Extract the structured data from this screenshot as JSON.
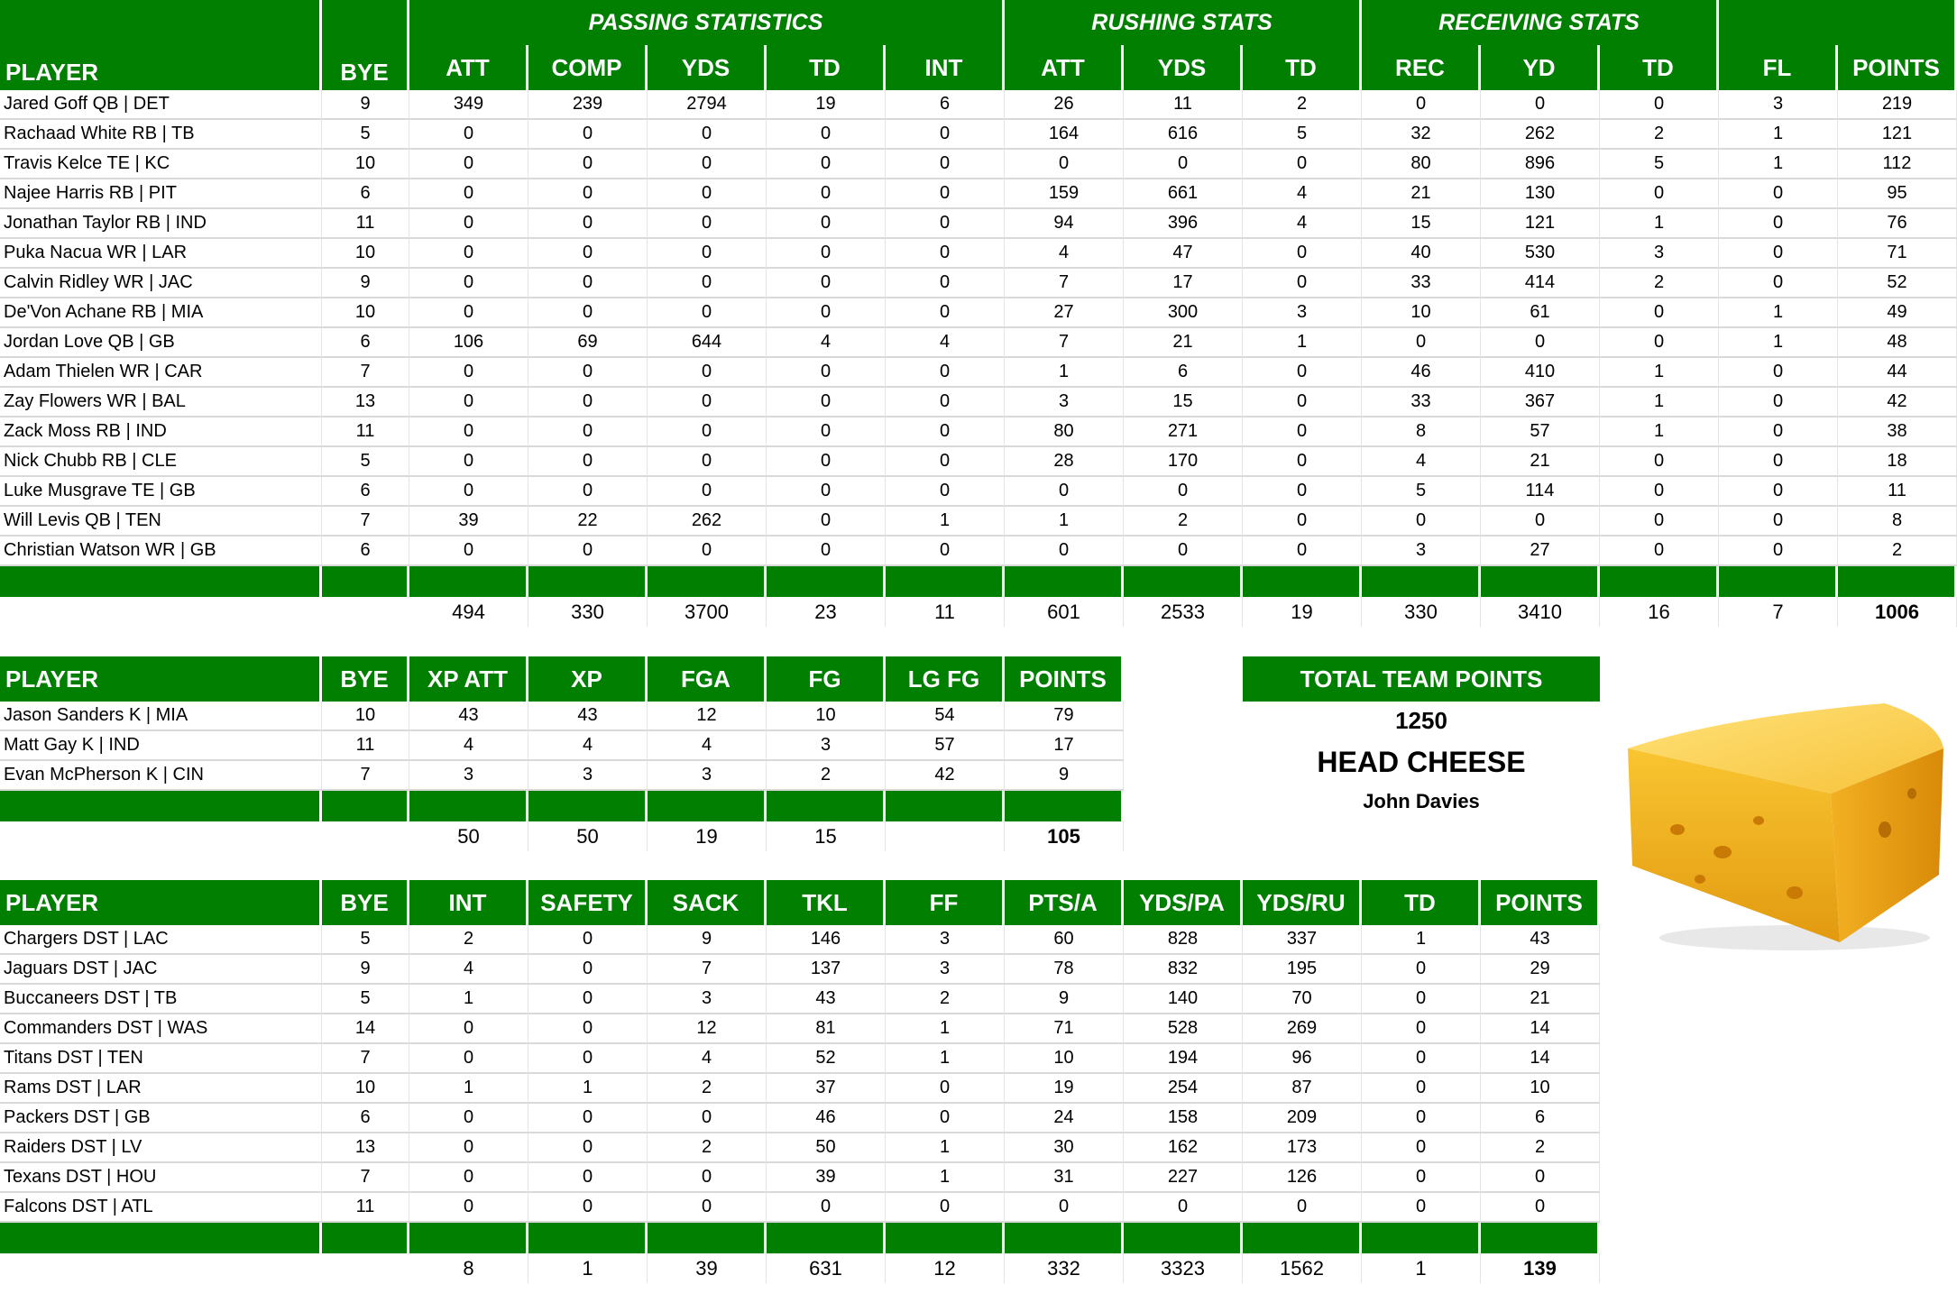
{
  "colors": {
    "header_green": "#007f00",
    "text": "#000000",
    "cheese": "#f4b400"
  },
  "offense": {
    "groups": [
      {
        "label": "",
        "span": 2
      },
      {
        "label": "PASSING STATISTICS",
        "span": 5
      },
      {
        "label": "RUSHING STATS",
        "span": 3
      },
      {
        "label": "RECEIVING STATS",
        "span": 3
      },
      {
        "label": "",
        "span": 2
      }
    ],
    "columns": [
      "PLAYER",
      "BYE",
      "ATT",
      "COMP",
      "YDS",
      "TD",
      "INT",
      "ATT",
      "YDS",
      "TD",
      "REC",
      "YD",
      "TD",
      "FL",
      "POINTS"
    ],
    "rows": [
      [
        "Jared Goff QB | DET",
        "9",
        "349",
        "239",
        "2794",
        "19",
        "6",
        "26",
        "11",
        "2",
        "0",
        "0",
        "0",
        "3",
        "219"
      ],
      [
        "Rachaad White RB | TB",
        "5",
        "0",
        "0",
        "0",
        "0",
        "0",
        "164",
        "616",
        "5",
        "32",
        "262",
        "2",
        "1",
        "121"
      ],
      [
        "Travis Kelce TE | KC",
        "10",
        "0",
        "0",
        "0",
        "0",
        "0",
        "0",
        "0",
        "0",
        "80",
        "896",
        "5",
        "1",
        "112"
      ],
      [
        "Najee Harris RB | PIT",
        "6",
        "0",
        "0",
        "0",
        "0",
        "0",
        "159",
        "661",
        "4",
        "21",
        "130",
        "0",
        "0",
        "95"
      ],
      [
        "Jonathan Taylor RB | IND",
        "11",
        "0",
        "0",
        "0",
        "0",
        "0",
        "94",
        "396",
        "4",
        "15",
        "121",
        "1",
        "0",
        "76"
      ],
      [
        "Puka Nacua WR | LAR",
        "10",
        "0",
        "0",
        "0",
        "0",
        "0",
        "4",
        "47",
        "0",
        "40",
        "530",
        "3",
        "0",
        "71"
      ],
      [
        "Calvin Ridley WR | JAC",
        "9",
        "0",
        "0",
        "0",
        "0",
        "0",
        "7",
        "17",
        "0",
        "33",
        "414",
        "2",
        "0",
        "52"
      ],
      [
        "De'Von Achane RB | MIA",
        "10",
        "0",
        "0",
        "0",
        "0",
        "0",
        "27",
        "300",
        "3",
        "10",
        "61",
        "0",
        "1",
        "49"
      ],
      [
        "Jordan Love QB | GB",
        "6",
        "106",
        "69",
        "644",
        "4",
        "4",
        "7",
        "21",
        "1",
        "0",
        "0",
        "0",
        "1",
        "48"
      ],
      [
        "Adam Thielen WR | CAR",
        "7",
        "0",
        "0",
        "0",
        "0",
        "0",
        "1",
        "6",
        "0",
        "46",
        "410",
        "1",
        "0",
        "44"
      ],
      [
        "Zay Flowers WR | BAL",
        "13",
        "0",
        "0",
        "0",
        "0",
        "0",
        "3",
        "15",
        "0",
        "33",
        "367",
        "1",
        "0",
        "42"
      ],
      [
        "Zack Moss RB | IND",
        "11",
        "0",
        "0",
        "0",
        "0",
        "0",
        "80",
        "271",
        "0",
        "8",
        "57",
        "1",
        "0",
        "38"
      ],
      [
        "Nick Chubb RB | CLE",
        "5",
        "0",
        "0",
        "0",
        "0",
        "0",
        "28",
        "170",
        "0",
        "4",
        "21",
        "0",
        "0",
        "18"
      ],
      [
        "Luke Musgrave TE | GB",
        "6",
        "0",
        "0",
        "0",
        "0",
        "0",
        "0",
        "0",
        "0",
        "5",
        "114",
        "0",
        "0",
        "11"
      ],
      [
        "Will Levis QB | TEN",
        "7",
        "39",
        "22",
        "262",
        "0",
        "1",
        "1",
        "2",
        "0",
        "0",
        "0",
        "0",
        "0",
        "8"
      ],
      [
        "Christian Watson WR | GB",
        "6",
        "0",
        "0",
        "0",
        "0",
        "0",
        "0",
        "0",
        "0",
        "3",
        "27",
        "0",
        "0",
        "2"
      ]
    ],
    "totals": [
      "",
      "",
      "494",
      "330",
      "3700",
      "23",
      "11",
      "601",
      "2533",
      "19",
      "330",
      "3410",
      "16",
      "7",
      "1006"
    ]
  },
  "kickers": {
    "columns": [
      "PLAYER",
      "BYE",
      "XP ATT",
      "XP",
      "FGA",
      "FG",
      "LG FG",
      "POINTS"
    ],
    "rows": [
      [
        "Jason Sanders K | MIA",
        "10",
        "43",
        "43",
        "12",
        "10",
        "54",
        "79"
      ],
      [
        "Matt Gay K | IND",
        "11",
        "4",
        "4",
        "4",
        "3",
        "57",
        "17"
      ],
      [
        "Evan McPherson K | CIN",
        "7",
        "3",
        "3",
        "3",
        "2",
        "42",
        "9"
      ]
    ],
    "totals": [
      "",
      "",
      "50",
      "50",
      "19",
      "15",
      "",
      "105"
    ]
  },
  "defense": {
    "columns": [
      "PLAYER",
      "BYE",
      "INT",
      "SAFETY",
      "SACK",
      "TKL",
      "FF",
      "PTS/A",
      "YDS/PA",
      "YDS/RU",
      "TD",
      "POINTS"
    ],
    "rows": [
      [
        "Chargers DST | LAC",
        "5",
        "2",
        "0",
        "9",
        "146",
        "3",
        "60",
        "828",
        "337",
        "1",
        "43"
      ],
      [
        "Jaguars DST | JAC",
        "9",
        "4",
        "0",
        "7",
        "137",
        "3",
        "78",
        "832",
        "195",
        "0",
        "29"
      ],
      [
        "Buccaneers DST | TB",
        "5",
        "1",
        "0",
        "3",
        "43",
        "2",
        "9",
        "140",
        "70",
        "0",
        "21"
      ],
      [
        "Commanders DST | WAS",
        "14",
        "0",
        "0",
        "12",
        "81",
        "1",
        "71",
        "528",
        "269",
        "0",
        "14"
      ],
      [
        "Titans DST | TEN",
        "7",
        "0",
        "0",
        "4",
        "52",
        "1",
        "10",
        "194",
        "96",
        "0",
        "14"
      ],
      [
        "Rams DST | LAR",
        "10",
        "1",
        "1",
        "2",
        "37",
        "0",
        "19",
        "254",
        "87",
        "0",
        "10"
      ],
      [
        "Packers DST | GB",
        "6",
        "0",
        "0",
        "0",
        "46",
        "0",
        "24",
        "158",
        "209",
        "0",
        "6"
      ],
      [
        "Raiders DST | LV",
        "13",
        "0",
        "0",
        "2",
        "50",
        "1",
        "30",
        "162",
        "173",
        "0",
        "2"
      ],
      [
        "Texans DST | HOU",
        "7",
        "0",
        "0",
        "0",
        "39",
        "1",
        "31",
        "227",
        "126",
        "0",
        "0"
      ],
      [
        "Falcons DST | ATL",
        "11",
        "0",
        "0",
        "0",
        "0",
        "0",
        "0",
        "0",
        "0",
        "0",
        "0"
      ]
    ],
    "totals": [
      "",
      "",
      "8",
      "1",
      "39",
      "631",
      "12",
      "332",
      "3323",
      "1562",
      "1",
      "139"
    ]
  },
  "team_summary": {
    "header": "TOTAL TEAM POINTS",
    "total": "1250",
    "title": "HEAD CHEESE",
    "owner": "John Davies",
    "image_icon": "cheese-wedge-icon"
  }
}
